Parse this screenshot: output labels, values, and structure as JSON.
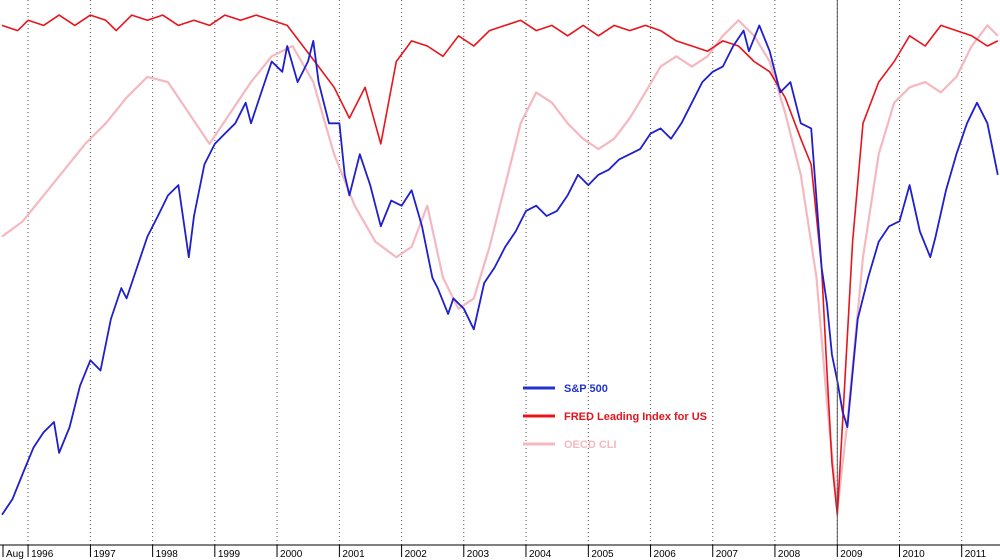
{
  "chart_data": {
    "type": "line",
    "title": "",
    "xlabel": "",
    "ylabel": "",
    "x_axis": {
      "start_label": "Aug",
      "year_labels": [
        "1996",
        "1997",
        "1998",
        "1999",
        "2000",
        "2001",
        "2002",
        "2003",
        "2004",
        "2005",
        "2006",
        "2007",
        "2008",
        "2009",
        "2010",
        "2011"
      ],
      "grid": "vertical dotted"
    },
    "cursor_date": "2009-01",
    "series": [
      {
        "name": "S&P 500",
        "color": "#1f1fcc",
        "points": [
          [
            "1995-08",
            0.02
          ],
          [
            "1995-10",
            0.05
          ],
          [
            "1995-12",
            0.1
          ],
          [
            "1996-02",
            0.15
          ],
          [
            "1996-04",
            0.18
          ],
          [
            "1996-06",
            0.2
          ],
          [
            "1996-07",
            0.14
          ],
          [
            "1996-09",
            0.19
          ],
          [
            "1996-11",
            0.27
          ],
          [
            "1997-01",
            0.32
          ],
          [
            "1997-03",
            0.3
          ],
          [
            "1997-05",
            0.4
          ],
          [
            "1997-07",
            0.46
          ],
          [
            "1997-08",
            0.44
          ],
          [
            "1997-10",
            0.5
          ],
          [
            "1997-12",
            0.56
          ],
          [
            "1998-02",
            0.6
          ],
          [
            "1998-04",
            0.64
          ],
          [
            "1998-06",
            0.66
          ],
          [
            "1998-08",
            0.52
          ],
          [
            "1998-09",
            0.6
          ],
          [
            "1998-11",
            0.7
          ],
          [
            "1999-01",
            0.74
          ],
          [
            "1999-03",
            0.76
          ],
          [
            "1999-05",
            0.78
          ],
          [
            "1999-07",
            0.82
          ],
          [
            "1999-08",
            0.78
          ],
          [
            "1999-10",
            0.84
          ],
          [
            "1999-12",
            0.9
          ],
          [
            "2000-02",
            0.88
          ],
          [
            "2000-03",
            0.93
          ],
          [
            "2000-05",
            0.86
          ],
          [
            "2000-07",
            0.9
          ],
          [
            "2000-08",
            0.94
          ],
          [
            "2000-09",
            0.86
          ],
          [
            "2000-11",
            0.78
          ],
          [
            "2001-01",
            0.78
          ],
          [
            "2001-02",
            0.68
          ],
          [
            "2001-03",
            0.64
          ],
          [
            "2001-05",
            0.72
          ],
          [
            "2001-07",
            0.66
          ],
          [
            "2001-09",
            0.58
          ],
          [
            "2001-11",
            0.63
          ],
          [
            "2002-01",
            0.62
          ],
          [
            "2002-03",
            0.65
          ],
          [
            "2002-05",
            0.58
          ],
          [
            "2002-07",
            0.48
          ],
          [
            "2002-08",
            0.46
          ],
          [
            "2002-10",
            0.41
          ],
          [
            "2002-11",
            0.44
          ],
          [
            "2003-01",
            0.42
          ],
          [
            "2003-03",
            0.38
          ],
          [
            "2003-05",
            0.47
          ],
          [
            "2003-07",
            0.5
          ],
          [
            "2003-09",
            0.54
          ],
          [
            "2003-11",
            0.57
          ],
          [
            "2004-01",
            0.61
          ],
          [
            "2004-03",
            0.62
          ],
          [
            "2004-05",
            0.6
          ],
          [
            "2004-07",
            0.61
          ],
          [
            "2004-09",
            0.64
          ],
          [
            "2004-11",
            0.68
          ],
          [
            "2005-01",
            0.66
          ],
          [
            "2005-03",
            0.68
          ],
          [
            "2005-05",
            0.69
          ],
          [
            "2005-07",
            0.71
          ],
          [
            "2005-09",
            0.72
          ],
          [
            "2005-11",
            0.73
          ],
          [
            "2006-01",
            0.76
          ],
          [
            "2006-03",
            0.77
          ],
          [
            "2006-05",
            0.75
          ],
          [
            "2006-07",
            0.78
          ],
          [
            "2006-09",
            0.82
          ],
          [
            "2006-11",
            0.86
          ],
          [
            "2007-01",
            0.88
          ],
          [
            "2007-03",
            0.89
          ],
          [
            "2007-05",
            0.93
          ],
          [
            "2007-07",
            0.96
          ],
          [
            "2007-08",
            0.92
          ],
          [
            "2007-10",
            0.97
          ],
          [
            "2007-12",
            0.92
          ],
          [
            "2008-02",
            0.84
          ],
          [
            "2008-04",
            0.86
          ],
          [
            "2008-06",
            0.78
          ],
          [
            "2008-08",
            0.77
          ],
          [
            "2008-10",
            0.5
          ],
          [
            "2008-11",
            0.43
          ],
          [
            "2008-12",
            0.33
          ],
          [
            "2009-01",
            0.28
          ],
          [
            "2009-02",
            0.22
          ],
          [
            "2009-03",
            0.19
          ],
          [
            "2009-05",
            0.4
          ],
          [
            "2009-07",
            0.48
          ],
          [
            "2009-09",
            0.55
          ],
          [
            "2009-11",
            0.58
          ],
          [
            "2010-01",
            0.59
          ],
          [
            "2010-03",
            0.66
          ],
          [
            "2010-05",
            0.57
          ],
          [
            "2010-07",
            0.52
          ],
          [
            "2010-08",
            0.56
          ],
          [
            "2010-10",
            0.65
          ],
          [
            "2010-12",
            0.72
          ],
          [
            "2011-02",
            0.78
          ],
          [
            "2011-04",
            0.82
          ],
          [
            "2011-06",
            0.78
          ],
          [
            "2011-08",
            0.68
          ]
        ]
      },
      {
        "name": "FRED Leading Index for US",
        "color": "#e8141c",
        "points": [
          [
            "1995-08",
            0.97
          ],
          [
            "1995-11",
            0.96
          ],
          [
            "1996-01",
            0.98
          ],
          [
            "1996-04",
            0.97
          ],
          [
            "1996-07",
            0.99
          ],
          [
            "1996-10",
            0.97
          ],
          [
            "1997-01",
            0.99
          ],
          [
            "1997-04",
            0.98
          ],
          [
            "1997-06",
            0.96
          ],
          [
            "1997-09",
            0.99
          ],
          [
            "1997-12",
            0.98
          ],
          [
            "1998-03",
            0.99
          ],
          [
            "1998-06",
            0.97
          ],
          [
            "1998-09",
            0.98
          ],
          [
            "1998-12",
            0.97
          ],
          [
            "1999-03",
            0.99
          ],
          [
            "1999-06",
            0.98
          ],
          [
            "1999-09",
            0.99
          ],
          [
            "1999-12",
            0.98
          ],
          [
            "2000-03",
            0.97
          ],
          [
            "2000-06",
            0.93
          ],
          [
            "2000-09",
            0.89
          ],
          [
            "2000-12",
            0.85
          ],
          [
            "2001-03",
            0.79
          ],
          [
            "2001-06",
            0.85
          ],
          [
            "2001-09",
            0.74
          ],
          [
            "2001-12",
            0.9
          ],
          [
            "2002-03",
            0.94
          ],
          [
            "2002-06",
            0.93
          ],
          [
            "2002-09",
            0.91
          ],
          [
            "2002-12",
            0.95
          ],
          [
            "2003-03",
            0.93
          ],
          [
            "2003-06",
            0.96
          ],
          [
            "2003-09",
            0.97
          ],
          [
            "2003-12",
            0.98
          ],
          [
            "2004-03",
            0.96
          ],
          [
            "2004-06",
            0.97
          ],
          [
            "2004-09",
            0.95
          ],
          [
            "2004-12",
            0.97
          ],
          [
            "2005-03",
            0.95
          ],
          [
            "2005-06",
            0.97
          ],
          [
            "2005-09",
            0.96
          ],
          [
            "2005-12",
            0.97
          ],
          [
            "2006-03",
            0.96
          ],
          [
            "2006-06",
            0.94
          ],
          [
            "2006-09",
            0.93
          ],
          [
            "2006-12",
            0.92
          ],
          [
            "2007-03",
            0.94
          ],
          [
            "2007-06",
            0.93
          ],
          [
            "2007-09",
            0.9
          ],
          [
            "2007-12",
            0.88
          ],
          [
            "2008-03",
            0.83
          ],
          [
            "2008-06",
            0.75
          ],
          [
            "2008-08",
            0.7
          ],
          [
            "2008-10",
            0.5
          ],
          [
            "2008-11",
            0.3
          ],
          [
            "2008-12",
            0.12
          ],
          [
            "2009-01",
            0.02
          ],
          [
            "2009-02",
            0.2
          ],
          [
            "2009-04",
            0.55
          ],
          [
            "2009-06",
            0.78
          ],
          [
            "2009-09",
            0.86
          ],
          [
            "2009-12",
            0.9
          ],
          [
            "2010-03",
            0.95
          ],
          [
            "2010-06",
            0.93
          ],
          [
            "2010-09",
            0.97
          ],
          [
            "2010-12",
            0.96
          ],
          [
            "2011-03",
            0.95
          ],
          [
            "2011-06",
            0.93
          ],
          [
            "2011-08",
            0.94
          ]
        ]
      },
      {
        "name": "OECD CLI",
        "color": "#f5b8c0",
        "points": [
          [
            "1995-08",
            0.56
          ],
          [
            "1995-12",
            0.59
          ],
          [
            "1996-04",
            0.64
          ],
          [
            "1996-08",
            0.69
          ],
          [
            "1996-12",
            0.74
          ],
          [
            "1997-04",
            0.78
          ],
          [
            "1997-08",
            0.83
          ],
          [
            "1997-12",
            0.87
          ],
          [
            "1998-04",
            0.86
          ],
          [
            "1998-08",
            0.8
          ],
          [
            "1998-12",
            0.74
          ],
          [
            "1999-04",
            0.8
          ],
          [
            "1999-08",
            0.86
          ],
          [
            "1999-12",
            0.91
          ],
          [
            "2000-04",
            0.93
          ],
          [
            "2000-08",
            0.86
          ],
          [
            "2000-12",
            0.72
          ],
          [
            "2001-04",
            0.62
          ],
          [
            "2001-08",
            0.55
          ],
          [
            "2001-12",
            0.52
          ],
          [
            "2002-03",
            0.54
          ],
          [
            "2002-06",
            0.62
          ],
          [
            "2002-09",
            0.48
          ],
          [
            "2002-12",
            0.42
          ],
          [
            "2003-03",
            0.44
          ],
          [
            "2003-06",
            0.54
          ],
          [
            "2003-09",
            0.66
          ],
          [
            "2003-12",
            0.78
          ],
          [
            "2004-03",
            0.84
          ],
          [
            "2004-06",
            0.82
          ],
          [
            "2004-09",
            0.78
          ],
          [
            "2004-12",
            0.75
          ],
          [
            "2005-03",
            0.73
          ],
          [
            "2005-06",
            0.75
          ],
          [
            "2005-09",
            0.79
          ],
          [
            "2005-12",
            0.84
          ],
          [
            "2006-03",
            0.89
          ],
          [
            "2006-06",
            0.91
          ],
          [
            "2006-09",
            0.89
          ],
          [
            "2006-12",
            0.91
          ],
          [
            "2007-03",
            0.95
          ],
          [
            "2007-06",
            0.98
          ],
          [
            "2007-09",
            0.95
          ],
          [
            "2007-12",
            0.9
          ],
          [
            "2008-03",
            0.8
          ],
          [
            "2008-06",
            0.68
          ],
          [
            "2008-09",
            0.48
          ],
          [
            "2008-11",
            0.24
          ],
          [
            "2009-01",
            0.03
          ],
          [
            "2009-03",
            0.2
          ],
          [
            "2009-06",
            0.52
          ],
          [
            "2009-09",
            0.72
          ],
          [
            "2009-12",
            0.82
          ],
          [
            "2010-03",
            0.85
          ],
          [
            "2010-06",
            0.86
          ],
          [
            "2010-09",
            0.84
          ],
          [
            "2010-12",
            0.87
          ],
          [
            "2011-03",
            0.93
          ],
          [
            "2011-06",
            0.97
          ],
          [
            "2011-08",
            0.95
          ]
        ]
      }
    ],
    "legend": {
      "placement": "center-bottom",
      "items": [
        "S&P 500",
        "FRED Leading Index for US",
        "OECD CLI"
      ]
    },
    "colors": {
      "grid": "#555555",
      "axis": "#000000",
      "cursor": "#555555",
      "legend_sp500": "#2233cc",
      "legend_fred": "#e8141c",
      "legend_oecd": "#f5b8c0"
    }
  }
}
